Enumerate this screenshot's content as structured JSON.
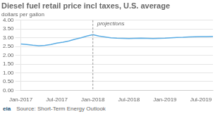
{
  "chart_data": {
    "type": "line",
    "title": "Diesel fuel retail price incl taxes, U.S. average",
    "ylabel": "dollars per gallon",
    "source": "Source: Short-Term Energy Outlook",
    "logo": "eia",
    "categories": [
      "Jan-2017",
      null,
      null,
      null,
      null,
      null,
      "Jul-2017",
      null,
      null,
      null,
      null,
      null,
      "Jan-2018",
      null,
      null,
      null,
      null,
      null,
      "Jul-2018",
      null,
      null,
      null,
      null,
      null,
      "Jan-2019",
      null,
      null,
      null,
      null,
      null,
      "Jul-2019",
      null,
      null
    ],
    "series": [
      {
        "color": "#5aace4",
        "values": [
          2.65,
          2.62,
          2.58,
          2.55,
          2.57,
          2.62,
          2.7,
          2.75,
          2.82,
          2.92,
          3.0,
          3.1,
          3.18,
          null,
          null,
          null,
          null,
          null,
          null,
          null,
          null,
          null,
          null,
          null,
          null,
          null,
          null,
          null,
          null,
          null,
          null,
          null,
          null
        ]
      },
      {
        "color": "#5aace4",
        "values": [
          null,
          null,
          null,
          null,
          null,
          null,
          null,
          null,
          null,
          null,
          null,
          null,
          3.18,
          3.1,
          3.05,
          3.0,
          2.98,
          2.97,
          2.96,
          2.97,
          2.98,
          2.97,
          2.96,
          2.97,
          2.98,
          3.0,
          3.02,
          3.03,
          3.05,
          3.06,
          3.07,
          3.07,
          3.08
        ]
      }
    ],
    "annotations": [
      {
        "text": "projections",
        "x": "Jan-2018"
      }
    ],
    "ylim": [
      0.0,
      4.0
    ],
    "yticks": [
      {
        "value": 0.0,
        "label": "0.00"
      },
      {
        "value": 0.5,
        "label": "0.50"
      },
      {
        "value": 1.0,
        "label": "1.00"
      },
      {
        "value": 1.5,
        "label": "1.50"
      },
      {
        "value": 2.0,
        "label": "2.00"
      },
      {
        "value": 2.5,
        "label": "2.50"
      },
      {
        "value": 3.0,
        "label": "3.00"
      },
      {
        "value": 3.5,
        "label": "3.50"
      },
      {
        "value": 4.0,
        "label": "4.00"
      }
    ],
    "grid": "y"
  }
}
